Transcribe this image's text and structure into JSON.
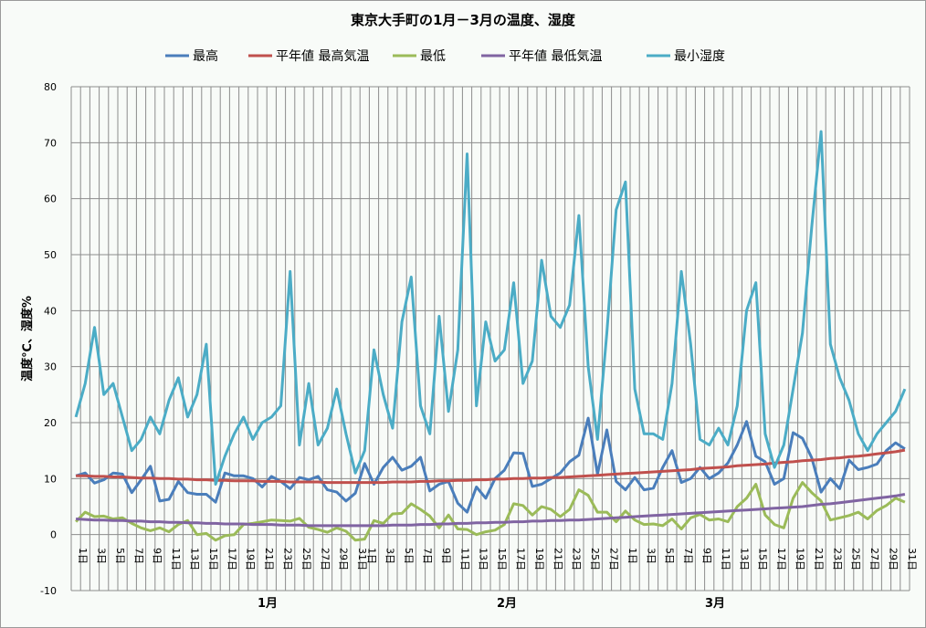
{
  "chart_data": {
    "type": "line",
    "title": "東京大手町の1月－3月の温度、湿度",
    "ylabel": "温度℃、湿度%",
    "xlabel": "",
    "ylim": [
      -10,
      80
    ],
    "yticks": [
      -10,
      0,
      10,
      20,
      30,
      40,
      50,
      60,
      70,
      80
    ],
    "grid": true,
    "legend_position": "top",
    "months": [
      {
        "label": "1月",
        "days": 31
      },
      {
        "label": "2月",
        "days": 28
      },
      {
        "label": "3月",
        "days": 31
      }
    ],
    "day_suffix": "日",
    "series": [
      {
        "name": "最高",
        "color": "#4a7ebb",
        "values": [
          10.5,
          11,
          9.2,
          9.8,
          11,
          10.8,
          7.5,
          9.8,
          12.2,
          6,
          6.3,
          9.5,
          7.5,
          7.2,
          7.2,
          5.8,
          11,
          10.5,
          10.5,
          10,
          8.5,
          10.4,
          9.5,
          8.2,
          10.2,
          9.8,
          10.4,
          8,
          7.6,
          6,
          7.4,
          12.7,
          9,
          12,
          13.8,
          11.5,
          12.2,
          13.8,
          7.8,
          9,
          9.5,
          5.6,
          4,
          8.5,
          6.5,
          10,
          11.5,
          14.6,
          14.5,
          8.6,
          9,
          10,
          11,
          13,
          14.2,
          20.8,
          10.8,
          18.7,
          9.5,
          8,
          10.2,
          8,
          8.3,
          12,
          15,
          9.3,
          10,
          12,
          10,
          11,
          12.8,
          16,
          20.2,
          14,
          13,
          9,
          10,
          18.2,
          17.2,
          13.7,
          7.6,
          10,
          8.2,
          13.3,
          11.6,
          12,
          12.6,
          15,
          16.4,
          15.3
        ]
      },
      {
        "name": "平年値 最高気温",
        "color": "#c0504d",
        "values": [
          10.5,
          10.5,
          10.4,
          10.4,
          10.3,
          10.3,
          10.2,
          10.1,
          10.1,
          10.0,
          10.0,
          9.9,
          9.9,
          9.8,
          9.8,
          9.7,
          9.7,
          9.6,
          9.6,
          9.6,
          9.5,
          9.5,
          9.5,
          9.4,
          9.4,
          9.4,
          9.4,
          9.3,
          9.3,
          9.3,
          9.3,
          9.3,
          9.3,
          9.3,
          9.4,
          9.4,
          9.4,
          9.5,
          9.5,
          9.6,
          9.6,
          9.7,
          9.7,
          9.8,
          9.8,
          9.9,
          9.9,
          10.0,
          10.0,
          10.1,
          10.1,
          10.2,
          10.2,
          10.3,
          10.4,
          10.5,
          10.6,
          10.7,
          10.8,
          10.9,
          11.0,
          11.1,
          11.2,
          11.3,
          11.4,
          11.5,
          11.6,
          11.8,
          11.9,
          12.0,
          12.1,
          12.3,
          12.4,
          12.5,
          12.6,
          12.8,
          12.9,
          13.0,
          13.2,
          13.3,
          13.4,
          13.6,
          13.7,
          13.9,
          14.0,
          14.2,
          14.4,
          14.6,
          14.8,
          15.1
        ]
      },
      {
        "name": "最低",
        "color": "#9bbb59",
        "values": [
          2.3,
          4,
          3.2,
          3.3,
          2.8,
          3,
          2,
          1.2,
          0.7,
          1.2,
          0.5,
          1.8,
          2.5,
          0,
          0.2,
          -1,
          -0.2,
          0,
          1.8,
          2,
          2.3,
          2.6,
          2.5,
          2.4,
          2.9,
          1.3,
          0.9,
          0.4,
          1.2,
          0.6,
          -1,
          -0.8,
          2.5,
          2,
          3.7,
          3.8,
          5.5,
          4.5,
          3.3,
          1.2,
          3.5,
          1,
          0.9,
          0,
          0.5,
          0.8,
          1.8,
          5.5,
          5.2,
          3.5,
          5,
          4.5,
          3.2,
          4.5,
          8,
          7,
          4,
          4,
          2.3,
          4.2,
          2.6,
          1.8,
          1.9,
          1.6,
          2.8,
          1,
          3,
          3.6,
          2.6,
          2.8,
          2.3,
          5,
          6.5,
          9,
          3.5,
          1.8,
          1.2,
          6.5,
          9.3,
          7.5,
          6,
          2.6,
          3,
          3.4,
          4,
          2.8,
          4.3,
          5.2,
          6.5,
          5.8
        ]
      },
      {
        "name": "平年値 最低気温",
        "color": "#8064a2",
        "values": [
          2.8,
          2.7,
          2.6,
          2.6,
          2.5,
          2.5,
          2.4,
          2.4,
          2.3,
          2.3,
          2.2,
          2.2,
          2.1,
          2.1,
          2.0,
          2.0,
          1.9,
          1.9,
          1.9,
          1.8,
          1.8,
          1.8,
          1.7,
          1.7,
          1.7,
          1.6,
          1.6,
          1.6,
          1.6,
          1.6,
          1.6,
          1.6,
          1.6,
          1.6,
          1.7,
          1.7,
          1.7,
          1.8,
          1.8,
          1.9,
          1.9,
          2.0,
          2.0,
          2.1,
          2.1,
          2.2,
          2.2,
          2.3,
          2.3,
          2.4,
          2.4,
          2.5,
          2.5,
          2.6,
          2.6,
          2.7,
          2.8,
          2.9,
          3.0,
          3.1,
          3.2,
          3.3,
          3.4,
          3.5,
          3.6,
          3.7,
          3.8,
          3.9,
          4.0,
          4.1,
          4.2,
          4.3,
          4.4,
          4.5,
          4.6,
          4.7,
          4.8,
          4.9,
          5.0,
          5.2,
          5.4,
          5.5,
          5.7,
          5.9,
          6.1,
          6.3,
          6.5,
          6.7,
          6.9,
          7.2
        ]
      },
      {
        "name": "最小湿度",
        "color": "#4bacc6",
        "values": [
          21,
          27,
          37,
          25,
          27,
          21,
          15,
          17,
          21,
          18,
          24,
          28,
          21,
          25,
          34,
          9,
          14,
          18,
          21,
          17,
          20,
          21,
          23,
          47,
          16,
          27,
          16,
          19,
          26,
          18,
          11,
          15,
          33,
          25,
          19,
          38,
          46,
          23,
          18,
          39,
          22,
          33,
          68,
          23,
          38,
          31,
          33,
          45,
          27,
          31,
          49,
          39,
          37,
          41,
          57,
          30,
          17,
          36,
          58,
          63,
          26,
          18,
          18,
          17,
          27,
          47,
          34,
          17,
          16,
          19,
          16,
          23,
          40,
          45,
          18,
          12,
          16,
          26,
          36,
          55,
          72,
          34,
          28,
          24,
          18,
          15,
          18,
          20,
          22,
          26
        ]
      }
    ]
  }
}
